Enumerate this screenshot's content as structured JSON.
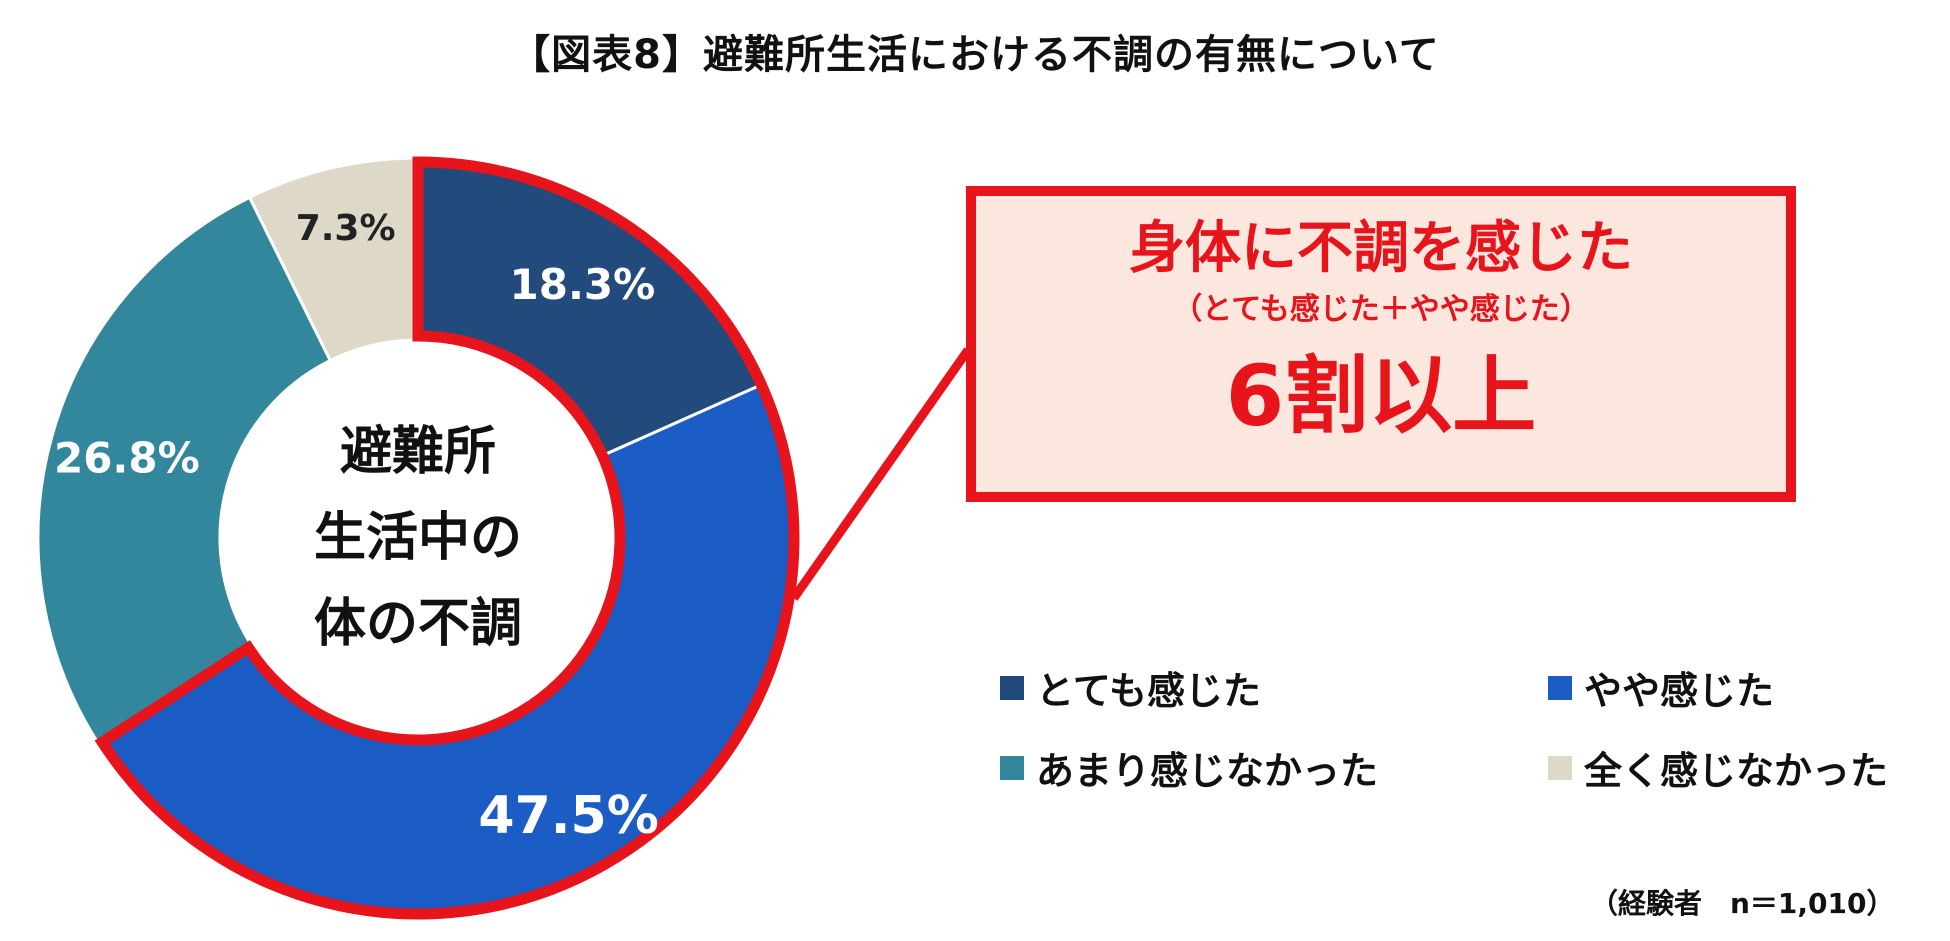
{
  "title": "【図表8】避難所生活における不調の有無について",
  "chart_data": {
    "type": "pie",
    "title": "【図表8】避難所生活における不調の有無について",
    "center_label": [
      "避難所",
      "生活中の",
      "体の不調"
    ],
    "categories": [
      "とても感じた",
      "やや感じた",
      "あまり感じなかった",
      "全く感じなかった"
    ],
    "values": [
      18.3,
      47.5,
      26.8,
      7.3
    ],
    "value_labels": [
      "18.3%",
      "47.5%",
      "26.8%",
      "7.3%"
    ],
    "colors": [
      "#234a7d",
      "#1c5cc5",
      "#33879d",
      "#ddd8c8"
    ],
    "highlight_color": "#e8141c",
    "highlighted_categories": [
      "とても感じた",
      "やや感じた"
    ],
    "legend_position": "bottom-right"
  },
  "callout": {
    "heading": "身体に不調を感じた",
    "subheading": "（とても感じた＋やや感じた）",
    "highlight": "6割以上"
  },
  "note": "（経験者　n＝1,010）"
}
